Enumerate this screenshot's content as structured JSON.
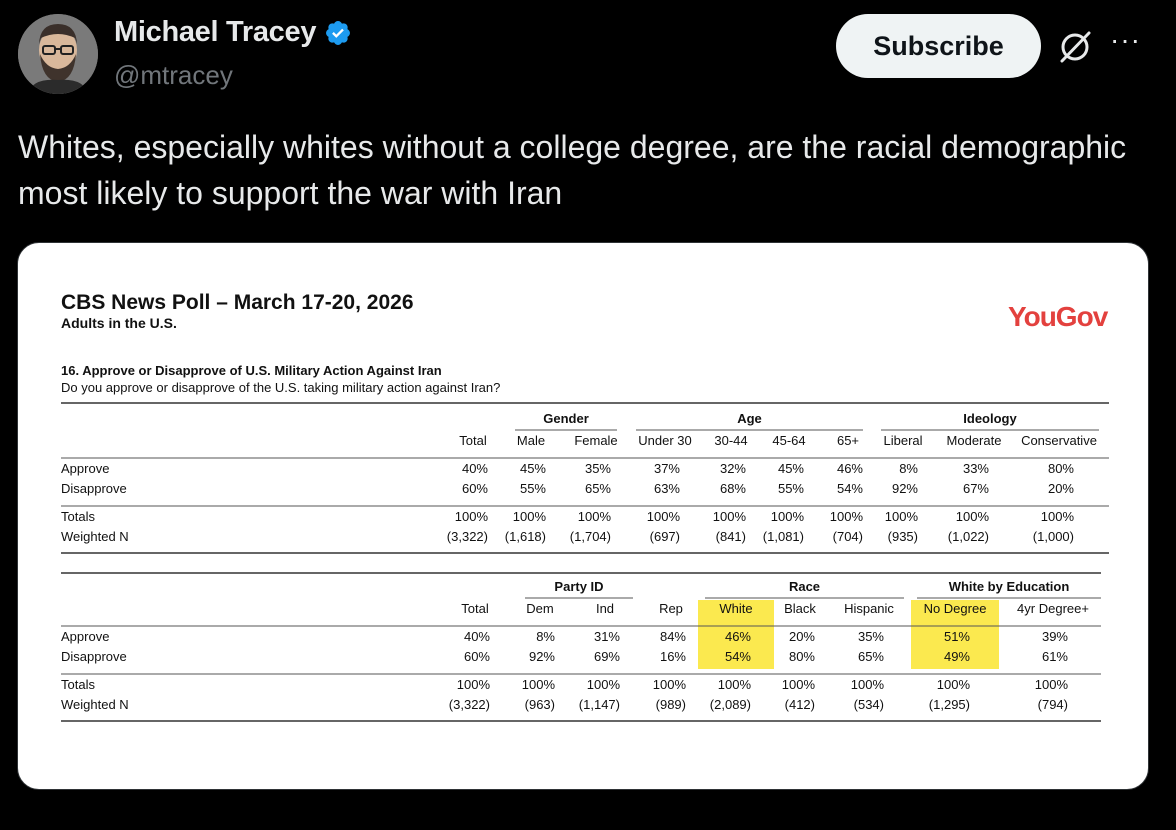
{
  "tweet": {
    "author_name": "Michael Tracey",
    "handle": "@mtracey",
    "subscribe_label": "Subscribe",
    "more_label": "···",
    "text": "Whites, especially whites without a college degree, are the racial demographic most likely to support the war with Iran",
    "verified_icon": "verified-badge-icon",
    "grok_icon": "grok-icon"
  },
  "poll": {
    "title": "CBS News Poll – March 17-20, 2026",
    "subtitle": "Adults in the U.S.",
    "brand": "YouGov",
    "brand_color": "#e3413e",
    "highlight_color": "#fbe94f",
    "question_title": "16. Approve or Disapprove of U.S. Military Action Against Iran",
    "question_text": "Do you approve or disapprove of the U.S. taking military action against Iran?",
    "tables": [
      {
        "groups": [
          {
            "label": "Gender"
          },
          {
            "label": "Age"
          },
          {
            "label": "Ideology"
          }
        ],
        "columns": [
          "Total",
          "Male",
          "Female",
          "Under 30",
          "30-44",
          "45-64",
          "65+",
          "Liberal",
          "Moderate",
          "Conservative"
        ],
        "highlight_columns": [],
        "rows": [
          {
            "label": "Approve",
            "values": [
              "40%",
              "45%",
              "35%",
              "37%",
              "32%",
              "45%",
              "46%",
              "8%",
              "33%",
              "80%"
            ]
          },
          {
            "label": "Disapprove",
            "values": [
              "60%",
              "55%",
              "65%",
              "63%",
              "68%",
              "55%",
              "54%",
              "92%",
              "67%",
              "20%"
            ]
          }
        ],
        "totals": [
          {
            "label": "Totals",
            "values": [
              "100%",
              "100%",
              "100%",
              "100%",
              "100%",
              "100%",
              "100%",
              "100%",
              "100%",
              "100%"
            ]
          },
          {
            "label": "Weighted N",
            "values": [
              "(3,322)",
              "(1,618)",
              "(1,704)",
              "(697)",
              "(841)",
              "(1,081)",
              "(704)",
              "(935)",
              "(1,022)",
              "(1,000)"
            ]
          }
        ]
      },
      {
        "groups": [
          {
            "label": "Party ID"
          },
          {
            "label": "Race"
          },
          {
            "label": "White by Education"
          }
        ],
        "columns": [
          "Total",
          "Dem",
          "Ind",
          "Rep",
          "White",
          "Black",
          "Hispanic",
          "No Degree",
          "4yr Degree+"
        ],
        "highlight_columns": [
          4,
          7
        ],
        "rows": [
          {
            "label": "Approve",
            "values": [
              "40%",
              "8%",
              "31%",
              "84%",
              "46%",
              "20%",
              "35%",
              "51%",
              "39%"
            ]
          },
          {
            "label": "Disapprove",
            "values": [
              "60%",
              "92%",
              "69%",
              "16%",
              "54%",
              "80%",
              "65%",
              "49%",
              "61%"
            ]
          }
        ],
        "totals": [
          {
            "label": "Totals",
            "values": [
              "100%",
              "100%",
              "100%",
              "100%",
              "100%",
              "100%",
              "100%",
              "100%",
              "100%"
            ]
          },
          {
            "label": "Weighted N",
            "values": [
              "(3,322)",
              "(963)",
              "(1,147)",
              "(989)",
              "(2,089)",
              "(412)",
              "(534)",
              "(1,295)",
              "(794)"
            ]
          }
        ]
      }
    ]
  }
}
